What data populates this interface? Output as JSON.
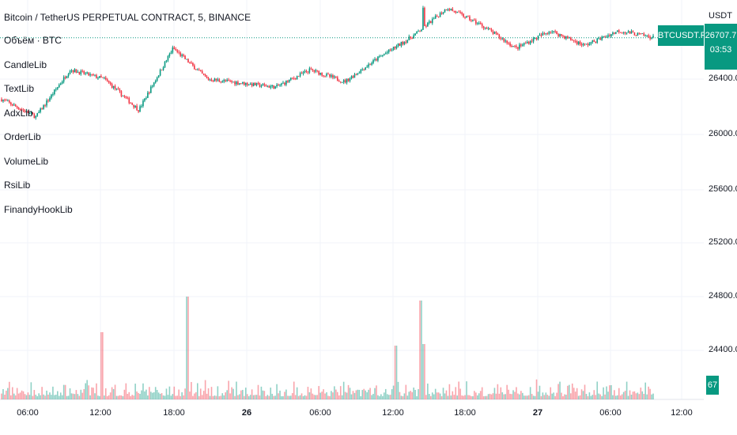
{
  "header": {
    "title": "Bitcoin / TetherUS PERPETUAL CONTRACT, 5, BINANCE"
  },
  "indicators": [
    "Объём · BTC",
    "CandleLib",
    "TextLib",
    "AdxLib",
    "OrderLib",
    "VolumeLib",
    "RsiLib",
    "FinandyHookLib"
  ],
  "price_axis": {
    "currency": "USDT",
    "ticks": [
      "26400.0",
      "26000.0",
      "25600.0",
      "25200.0",
      "24800.0",
      "24400.0"
    ]
  },
  "symbol_badge": "BTCUSDT.P",
  "last_price": "26707.7",
  "countdown": "03:53",
  "volume_badge": "67",
  "time_axis": [
    "06:00",
    "12:00",
    "18:00",
    "26",
    "06:00",
    "12:00",
    "18:00",
    "27",
    "06:00",
    "12:00"
  ],
  "colors": {
    "up": "#089981",
    "down": "#f23645",
    "accent": "#089981"
  },
  "chart_data": {
    "type": "candlestick",
    "ylim": [
      24200,
      27000
    ],
    "approx_close_path": [
      26250,
      26120,
      26470,
      26400,
      26170,
      26630,
      26400,
      26370,
      26340,
      26470,
      26380,
      26560,
      26720,
      26930,
      26800,
      26630,
      26760,
      26650,
      26760,
      26710
    ],
    "volume_spikes_index": [
      22,
      44,
      90,
      101
    ]
  }
}
